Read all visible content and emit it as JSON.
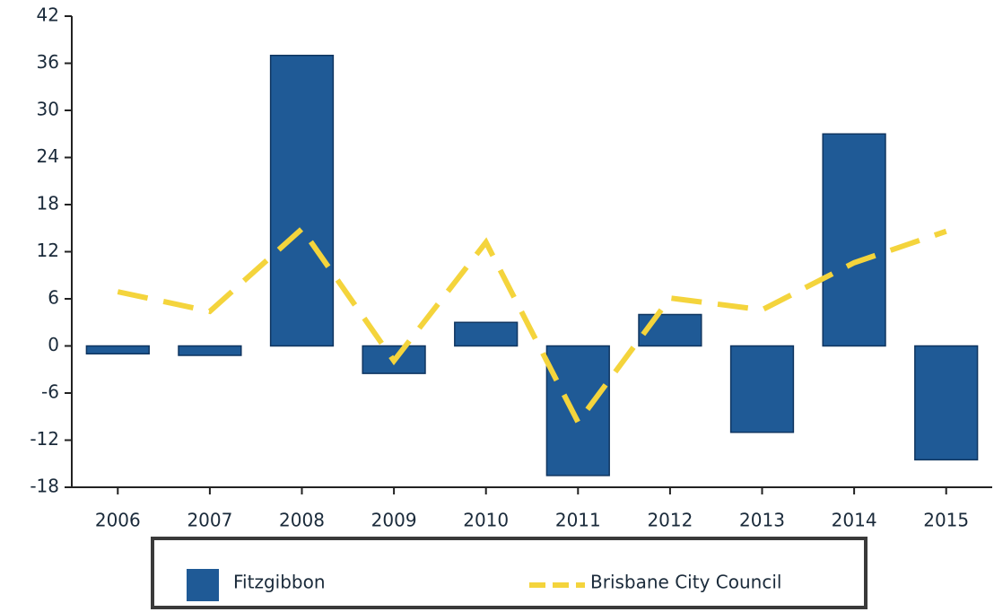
{
  "chart_data": {
    "type": "bar",
    "categories": [
      "2006",
      "2007",
      "2008",
      "2009",
      "2010",
      "2011",
      "2012",
      "2013",
      "2014",
      "2015"
    ],
    "series": [
      {
        "name": "Fitzgibbon",
        "type": "bar",
        "color": "#1f5a96",
        "values": [
          -1,
          -1.2,
          37,
          -3.5,
          3,
          -16.5,
          4,
          -11,
          27,
          -14.5
        ]
      },
      {
        "name": "Brisbane City Council",
        "type": "line",
        "color": "#f4d43c",
        "values": [
          6.9,
          4.4,
          14.9,
          -1.9,
          13.2,
          -9.7,
          6.1,
          4.6,
          10.6,
          14.6
        ]
      }
    ],
    "ylim": [
      -18,
      42
    ],
    "yticks": [
      -18,
      -12,
      -6,
      0,
      6,
      12,
      18,
      24,
      30,
      36,
      42
    ],
    "grid": false,
    "legend": "bottom"
  }
}
